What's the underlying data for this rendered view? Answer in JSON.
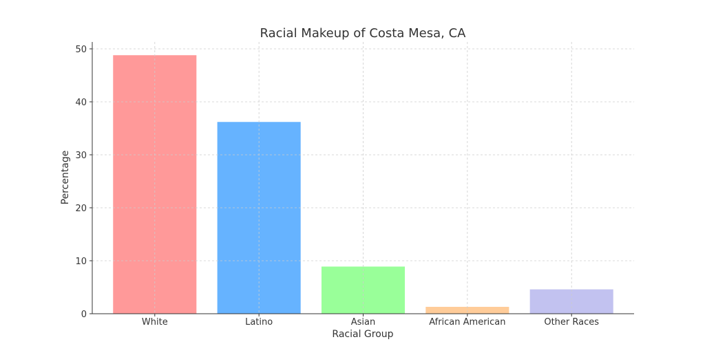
{
  "chart_data": {
    "type": "bar",
    "title": "Racial Makeup of Costa Mesa, CA",
    "xlabel": "Racial Group",
    "ylabel": "Percentage",
    "categories": [
      "White",
      "Latino",
      "Asian",
      "African American",
      "Other Races"
    ],
    "values": [
      48.8,
      36.2,
      8.9,
      1.3,
      4.6
    ],
    "colors": [
      "#ff9999",
      "#66b3ff",
      "#99ff99",
      "#ffcc99",
      "#c2c2f0"
    ],
    "ylim": [
      0,
      51.3
    ],
    "yticks": [
      0,
      10,
      20,
      30,
      40,
      50
    ],
    "grid": true,
    "legend": "none"
  }
}
